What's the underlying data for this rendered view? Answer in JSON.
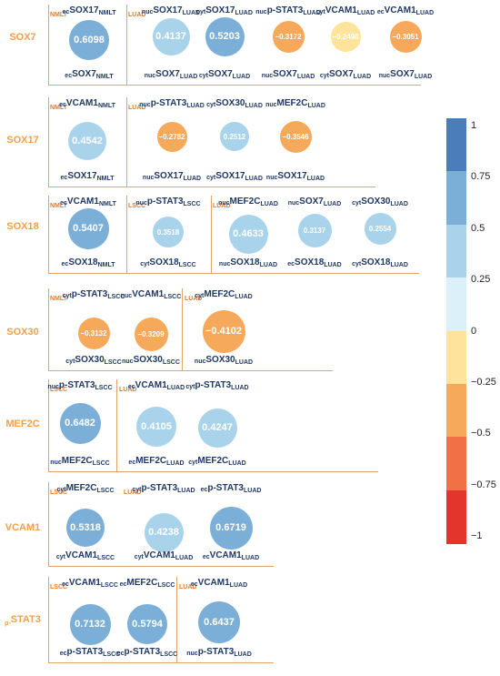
{
  "rows": [
    {
      "label": "SOX7",
      "groups": [
        {
          "text": "NMLT"
        },
        {
          "text": "LUAD"
        }
      ],
      "cells": [
        {
          "value": "0.6098",
          "top": {
            "pre": "ec",
            "base": "SOX17",
            "suf": "NMLT"
          },
          "bottom": {
            "pre": "ec",
            "base": "SOX7",
            "suf": "NMLT"
          }
        },
        {
          "value": "0.4137",
          "top": {
            "pre": "nuc",
            "base": "SOX17",
            "suf": "LUAD"
          },
          "bottom": {
            "pre": "nuc",
            "base": "SOX7",
            "suf": "LUAD"
          }
        },
        {
          "value": "0.5203",
          "top": {
            "pre": "cyt",
            "base": "SOX17",
            "suf": "LUAD"
          },
          "bottom": {
            "pre": "cyt",
            "base": "SOX7",
            "suf": "LUAD"
          }
        },
        {
          "value": "−0.3172",
          "top": {
            "pre": "nuc",
            "base": "p-STAT3",
            "suf": "LUAD"
          },
          "bottom": {
            "pre": "nuc",
            "base": "SOX7",
            "suf": "LUAD"
          }
        },
        {
          "value": "−0.2498",
          "top": {
            "pre": "cyt",
            "base": "VCAM1",
            "suf": "LUAD"
          },
          "bottom": {
            "pre": "cyt",
            "base": "SOX7",
            "suf": "LUAD"
          }
        },
        {
          "value": "−0.3051",
          "top": {
            "pre": "ec",
            "base": "VCAM1",
            "suf": "LUAD"
          },
          "bottom": {
            "pre": "nuc",
            "base": "SOX7",
            "suf": "LUAD"
          }
        }
      ]
    },
    {
      "label": "SOX17",
      "groups": [
        {
          "text": "NMLT"
        },
        {
          "text": "LUAD"
        }
      ],
      "cells": [
        {
          "value": "0.4542",
          "top": {
            "pre": "ec",
            "base": "VCAM1",
            "suf": "NMLT"
          },
          "bottom": {
            "pre": "ec",
            "base": "SOX17",
            "suf": "NMLT"
          }
        },
        {
          "value": "−0.2782",
          "top": {
            "pre": "nuc",
            "base": "p-STAT3",
            "suf": "LUAD"
          },
          "bottom": {
            "pre": "nuc",
            "base": "SOX17",
            "suf": "LUAD"
          }
        },
        {
          "value": "0.2512",
          "top": {
            "pre": "cyt",
            "base": "SOX30",
            "suf": "LUAD"
          },
          "bottom": {
            "pre": "cyt",
            "base": "SOX17",
            "suf": "LUAD"
          }
        },
        {
          "value": "−0.3546",
          "top": {
            "pre": "nuc",
            "base": "MEF2C",
            "suf": "LUAD"
          },
          "bottom": {
            "pre": "nuc",
            "base": "SOX17",
            "suf": "LUAD"
          }
        }
      ]
    },
    {
      "label": "SOX18",
      "groups": [
        {
          "text": "NMLT"
        },
        {
          "text": "LSCC"
        },
        {
          "text": "LUAD"
        }
      ],
      "cells": [
        {
          "value": "0.5407",
          "top": {
            "pre": "ec",
            "base": "VCAM1",
            "suf": "NMLT"
          },
          "bottom": {
            "pre": "ec",
            "base": "SOX18",
            "suf": "NMLT"
          }
        },
        {
          "value": "0.3518",
          "top": {
            "pre": "nuc",
            "base": "p-STAT3",
            "suf": "LSCC"
          },
          "bottom": {
            "pre": "cyt",
            "base": "SOX18",
            "suf": "LSCC"
          }
        },
        {
          "value": "0.4633",
          "top": {
            "pre": "nuc",
            "base": "MEF2C",
            "suf": "LUAD"
          },
          "bottom": {
            "pre": "nuc",
            "base": "SOX18",
            "suf": "LUAD"
          }
        },
        {
          "value": "0.3137",
          "top": {
            "pre": "nuc",
            "base": "SOX7",
            "suf": "LUAD"
          },
          "bottom": {
            "pre": "ec",
            "base": "SOX18",
            "suf": "LUAD"
          }
        },
        {
          "value": "0.2554",
          "top": {
            "pre": "cyt",
            "base": "SOX30",
            "suf": "LUAD"
          },
          "bottom": {
            "pre": "cyt",
            "base": "SOX18",
            "suf": "LUAD"
          }
        }
      ]
    },
    {
      "label": "SOX30",
      "groups": [
        {
          "text": "NMLT"
        },
        {
          "text": "LUAD"
        }
      ],
      "cells": [
        {
          "value": "−0.3132",
          "top": {
            "pre": "cyt",
            "base": "p-STAT3",
            "suf": "LSCC"
          },
          "bottom": {
            "pre": "cyt",
            "base": "SOX30",
            "suf": "LSCC"
          }
        },
        {
          "value": "−0.3209",
          "top": {
            "pre": "nuc",
            "base": "VCAM1",
            "suf": "LSCC"
          },
          "bottom": {
            "pre": "nuc",
            "base": "SOX30",
            "suf": "LSCC"
          }
        },
        {
          "value": "−0.4102",
          "top": {
            "pre": "cyt",
            "base": "MEF2C",
            "suf": "LUAD"
          },
          "bottom": {
            "pre": "nuc",
            "base": "SOX30",
            "suf": "LUAD"
          }
        }
      ]
    },
    {
      "label": "MEF2C",
      "groups": [
        {
          "text": "LSCC"
        },
        {
          "text": "LUAD"
        }
      ],
      "cells": [
        {
          "value": "0.6482",
          "top": {
            "pre": "nuc",
            "base": "p-STAT3",
            "suf": "LSCC"
          },
          "bottom": {
            "pre": "nuc",
            "base": "MEF2C",
            "suf": "LSCC"
          }
        },
        {
          "value": "0.4105",
          "top": {
            "pre": "ec",
            "base": "VCAM1",
            "suf": "LUAD"
          },
          "bottom": {
            "pre": "ec",
            "base": "MEF2C",
            "suf": "LUAD"
          }
        },
        {
          "value": "0.4247",
          "top": {
            "pre": "cyt",
            "base": "p-STAT3",
            "suf": "LUAD"
          },
          "bottom": {
            "pre": "cyt",
            "base": "MEF2C",
            "suf": "LUAD"
          }
        }
      ]
    },
    {
      "label": "VCAM1",
      "groups": [
        {
          "text": "LSCC"
        },
        {
          "text": "LUAD"
        }
      ],
      "cells": [
        {
          "value": "0.5318",
          "top": {
            "pre": "cyt",
            "base": "MEF2C",
            "suf": "LSCC"
          },
          "bottom": {
            "pre": "cyt",
            "base": "VCAM1",
            "suf": "LSCC"
          }
        },
        {
          "value": "0.4238",
          "top": {
            "pre": "cyt",
            "base": "p-STAT3",
            "suf": "LUAD"
          },
          "bottom": {
            "pre": "cyt",
            "base": "VCAM1",
            "suf": "LUAD"
          }
        },
        {
          "value": "0.6719",
          "top": {
            "pre": "ec",
            "base": "p-STAT3",
            "suf": "LUAD"
          },
          "bottom": {
            "pre": "ec",
            "base": "VCAM1",
            "suf": "LUAD"
          }
        }
      ]
    },
    {
      "label": "STAT3",
      "label_pre": "p-",
      "groups": [
        {
          "text": "LSCC"
        },
        {
          "text": "LUAD"
        }
      ],
      "cells": [
        {
          "value": "0.7132",
          "top": {
            "pre": "ec",
            "base": "VCAM1",
            "suf": "LSCC"
          },
          "bottom": {
            "pre": "ec",
            "base": "p-STAT3",
            "suf": "LSCC"
          }
        },
        {
          "value": "0.5794",
          "top": {
            "pre": "ec",
            "base": "MEF2C",
            "suf": "LSCC"
          },
          "bottom": {
            "pre": "ec",
            "base": "p-STAT3",
            "suf": "LSCC"
          }
        },
        {
          "value": "0.6437",
          "top": {
            "pre": "ec",
            "base": "VCAM1",
            "suf": "LUAD"
          },
          "bottom": {
            "pre": "nuc",
            "base": "p-STAT3",
            "suf": "LUAD"
          }
        }
      ]
    }
  ],
  "colorbar": {
    "ticks": [
      "1",
      "0.75",
      "0.5",
      "0.25",
      "0",
      "−0.25",
      "−0.5",
      "−0.75",
      "−1"
    ],
    "colors": [
      "#4a7ebb",
      "#7bafd8",
      "#a9d3ea",
      "#dcf0fa",
      "#fde49a",
      "#f6a95a",
      "#f07146",
      "#e3352b"
    ]
  }
}
